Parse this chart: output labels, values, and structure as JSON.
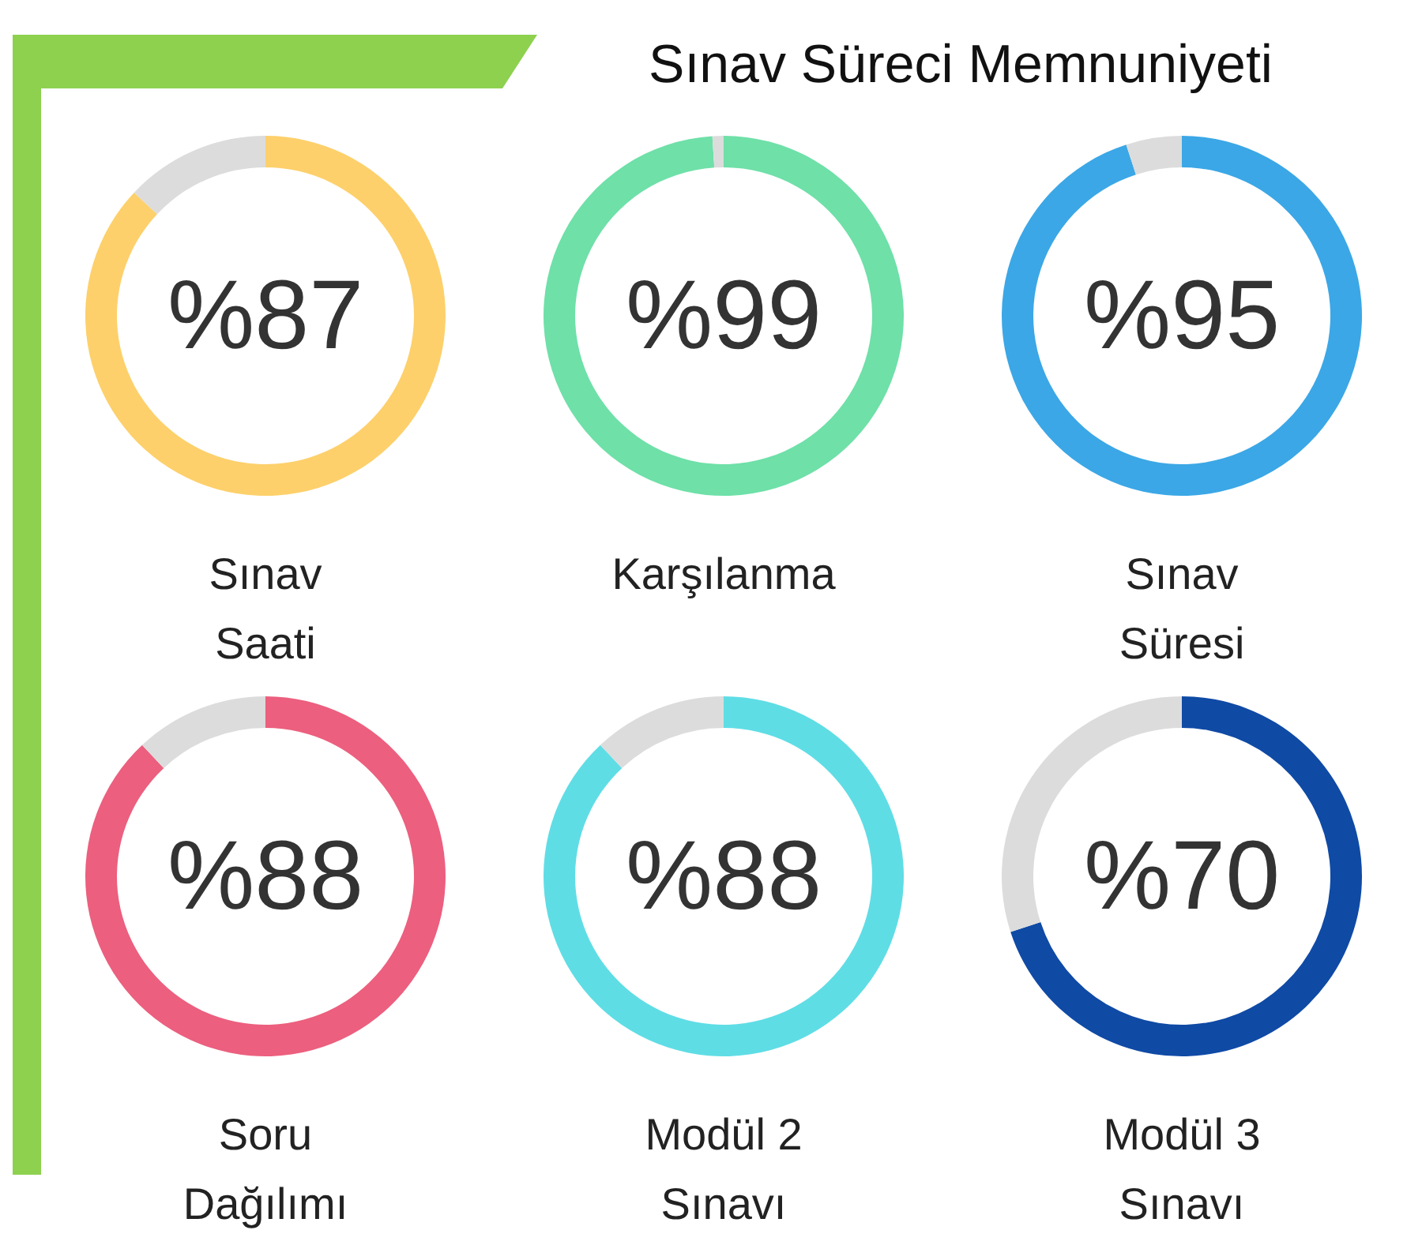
{
  "chart_data": [
    {
      "type": "donut",
      "title": "Sınav Süreci Memnuniyeti",
      "xlabel": "Sınav\nSaati",
      "categories": [
        null,
        null
      ],
      "values": [
        87,
        13
      ],
      "colors": [
        "#fdd06b",
        "#dcdcdc"
      ],
      "value_labels": [
        "%87",
        null
      ]
    },
    {
      "type": "donut",
      "xlabel": "Karşılanma",
      "categories": [
        null,
        null
      ],
      "values": [
        99,
        1
      ],
      "colors": [
        "#6ee0a8",
        "#dcdcdc"
      ],
      "value_labels": [
        "%99",
        null
      ]
    },
    {
      "type": "donut",
      "xlabel": "Sınav\nSüresi",
      "categories": [
        null,
        null
      ],
      "values": [
        95,
        5
      ],
      "colors": [
        "#3ba7e6",
        "#dcdcdc"
      ],
      "value_labels": [
        "%95",
        null
      ]
    },
    {
      "type": "donut",
      "xlabel": "Soru\nDağılımı",
      "categories": [
        null,
        null
      ],
      "values": [
        88,
        12
      ],
      "colors": [
        "#ec5f7e",
        "#dcdcdc"
      ],
      "value_labels": [
        "%88",
        null
      ]
    },
    {
      "type": "donut",
      "xlabel": "Modül 2\nSınavı",
      "categories": [
        null,
        null
      ],
      "values": [
        88,
        12
      ],
      "colors": [
        "#5fdde5",
        "#dcdcdc"
      ],
      "value_labels": [
        "%88",
        null
      ]
    },
    {
      "type": "donut",
      "xlabel": "Modül 3\nSınavı",
      "categories": [
        null,
        null
      ],
      "values": [
        70,
        30
      ],
      "colors": [
        "#0f4aa5",
        "#dcdcdc"
      ],
      "value_labels": [
        "%70",
        null
      ]
    }
  ]
}
